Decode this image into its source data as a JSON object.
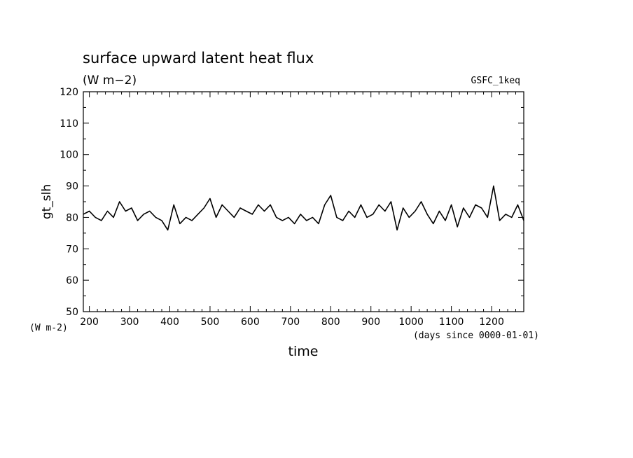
{
  "chart_data": {
    "type": "line",
    "title": "surface upward latent heat flux",
    "subtitle": "(W m−2)",
    "experiment_label": "GSFC_1keq",
    "xlabel": "time",
    "x_units": "(days since 0000-01-01)",
    "ylabel": "gt_slh",
    "y_units": "(W m-2)",
    "xlim": [
      185,
      1280
    ],
    "ylim": [
      50,
      120
    ],
    "x_ticks": [
      200,
      300,
      400,
      500,
      600,
      700,
      800,
      900,
      1000,
      1100,
      1200
    ],
    "y_ticks": [
      50,
      60,
      70,
      80,
      90,
      100,
      110,
      120
    ],
    "grid": false,
    "line_color": "#000000",
    "series": [
      {
        "x": [
          185,
          200,
          215,
          230,
          245,
          260,
          275,
          290,
          305,
          320,
          335,
          350,
          365,
          380,
          395,
          410,
          425,
          440,
          455,
          470,
          485,
          500,
          515,
          530,
          545,
          560,
          575,
          590,
          605,
          620,
          635,
          650,
          665,
          680,
          695,
          710,
          725,
          740,
          755,
          770,
          785,
          800,
          815,
          830,
          845,
          860,
          875,
          890,
          905,
          920,
          935,
          950,
          965,
          980,
          995,
          1010,
          1025,
          1040,
          1055,
          1070,
          1085,
          1100,
          1115,
          1130,
          1145,
          1160,
          1175,
          1190,
          1205,
          1220,
          1235,
          1250,
          1265,
          1280
        ],
        "values": [
          81,
          82,
          80,
          79,
          82,
          80,
          85,
          82,
          83,
          79,
          81,
          82,
          80,
          79,
          76,
          84,
          78,
          80,
          79,
          81,
          83,
          86,
          80,
          84,
          82,
          80,
          83,
          82,
          81,
          84,
          82,
          84,
          80,
          79,
          80,
          78,
          81,
          79,
          80,
          78,
          84,
          87,
          80,
          79,
          82,
          80,
          84,
          80,
          81,
          84,
          82,
          85,
          76,
          83,
          80,
          82,
          85,
          81,
          78,
          82,
          79,
          84,
          77,
          83,
          80,
          84,
          83,
          80,
          90,
          79,
          81,
          80,
          84,
          79
        ]
      }
    ]
  }
}
